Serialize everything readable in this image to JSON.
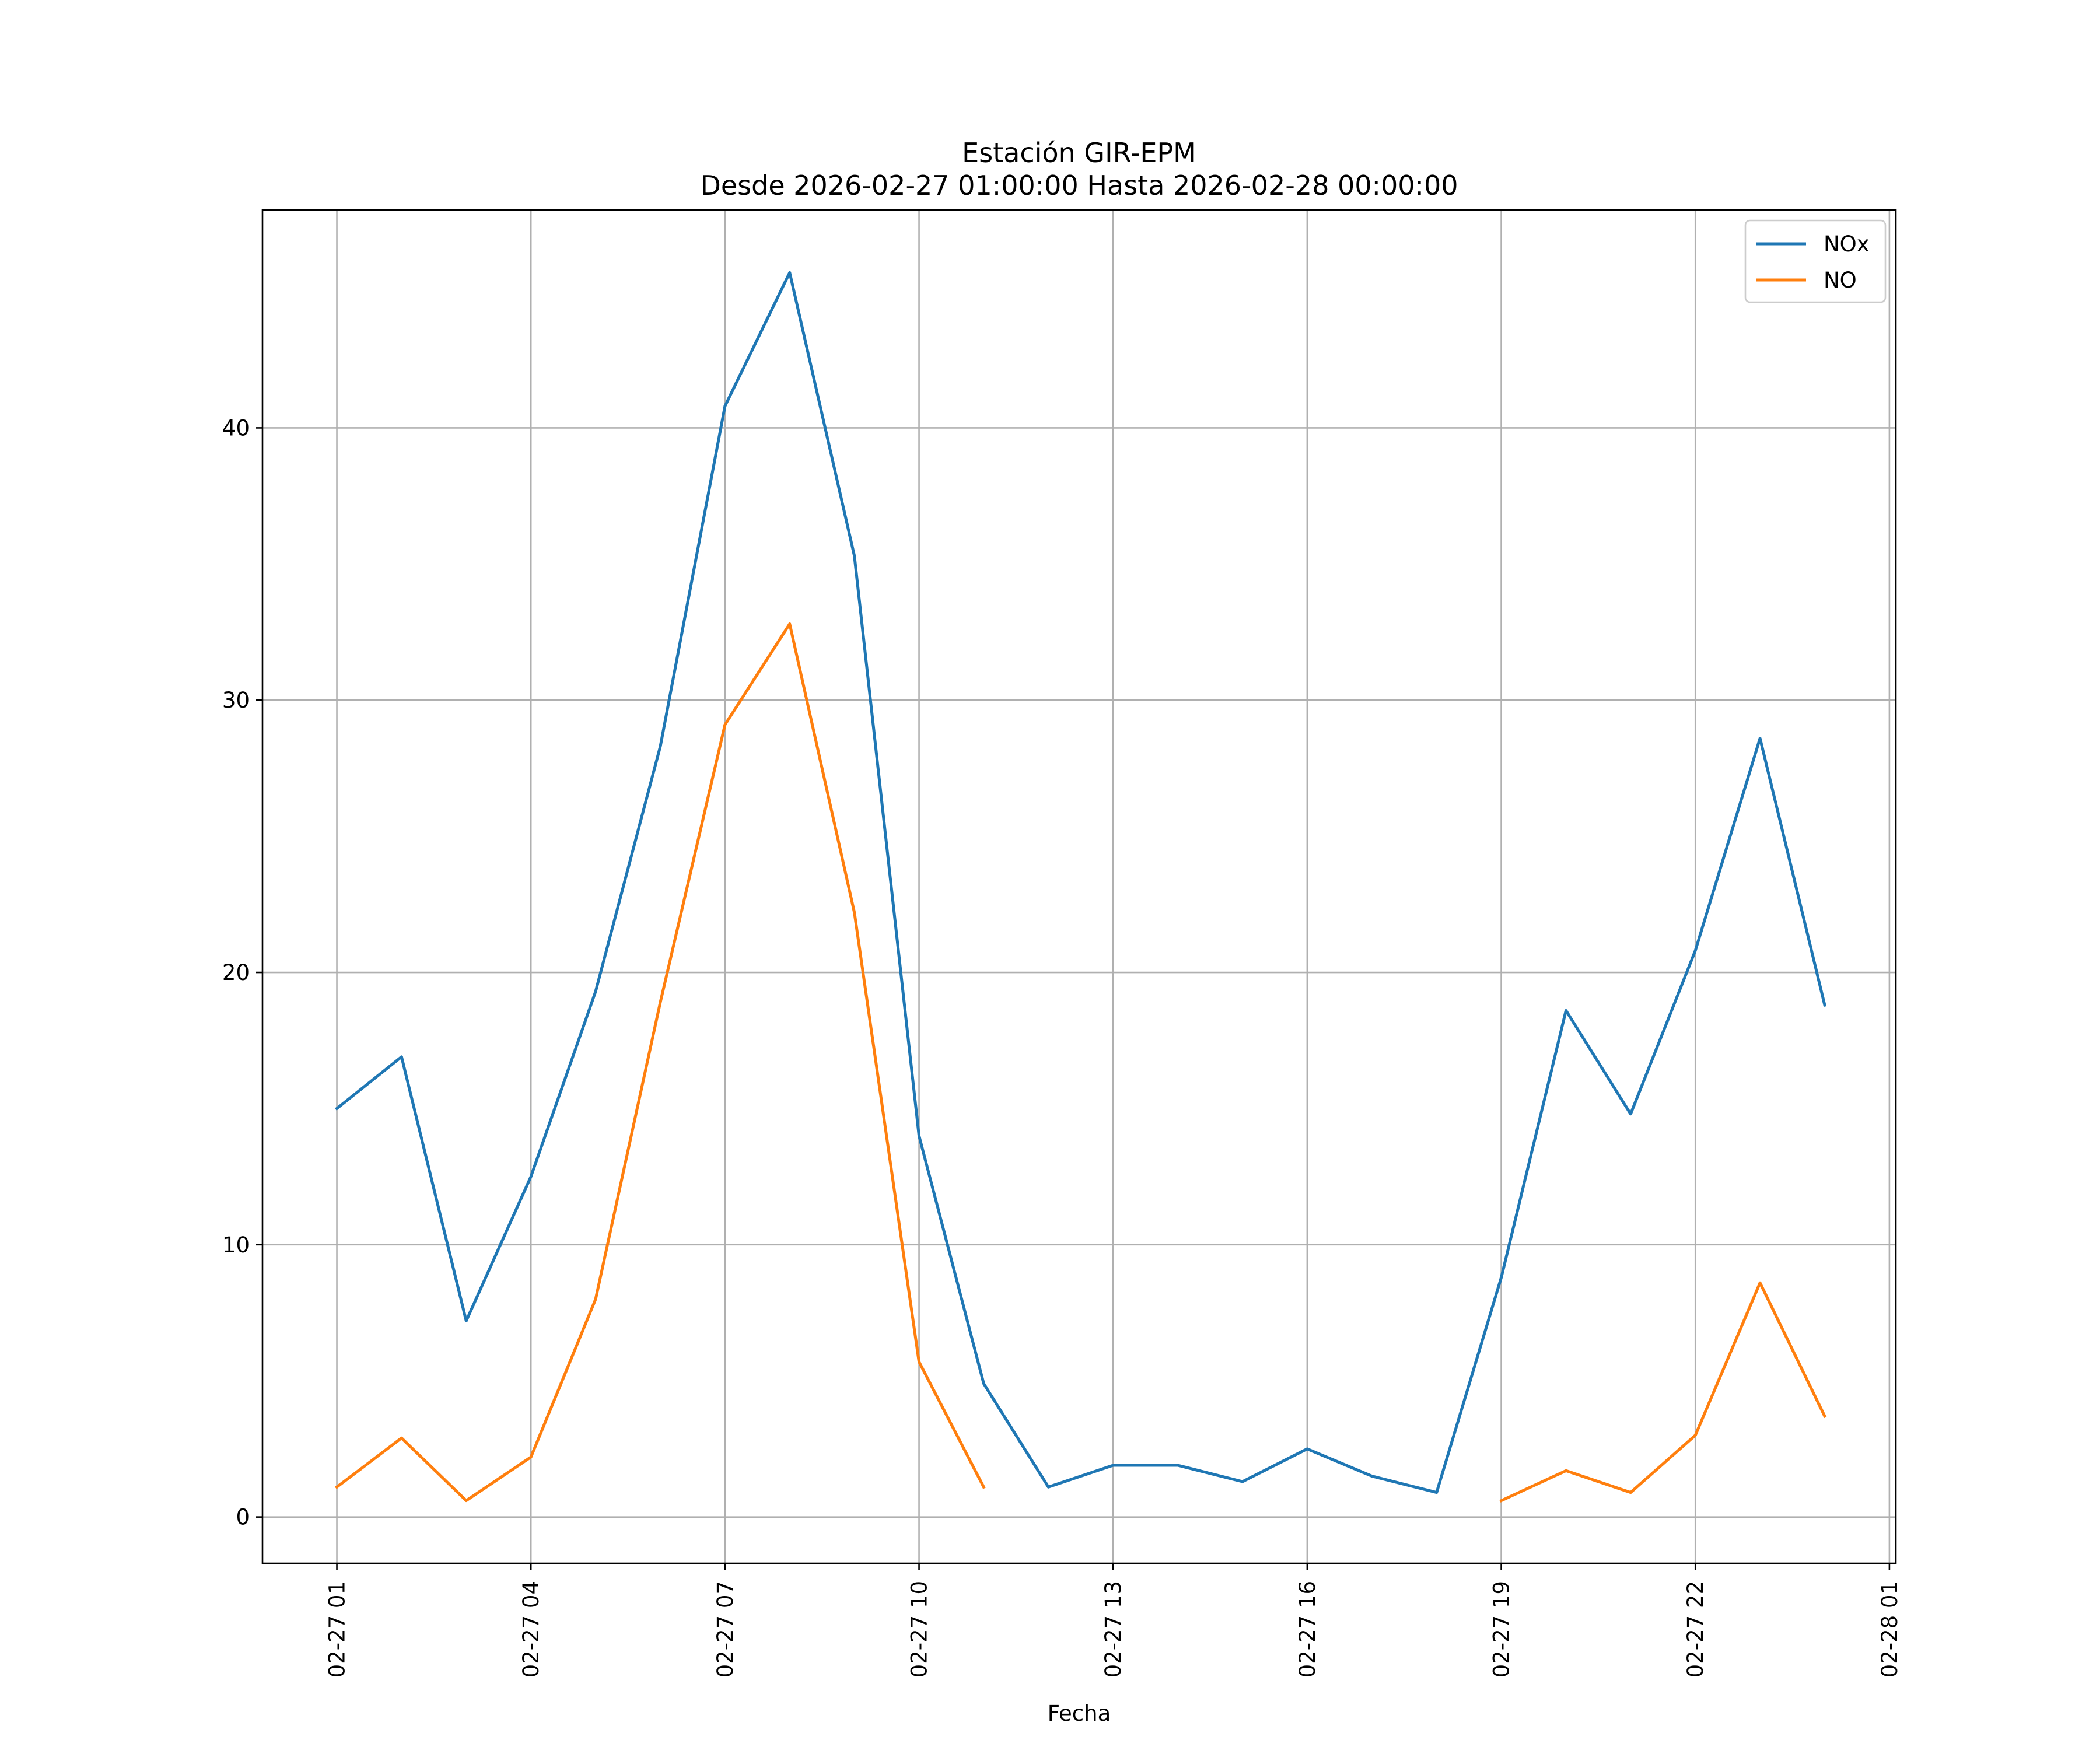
{
  "chart_data": {
    "type": "line",
    "title_line1": "Estación GIR-EPM",
    "title_line2": "Desde 2026-02-27 01:00:00 Hasta 2026-02-28 00:00:00",
    "xlabel": "Fecha",
    "ylabel": "",
    "x": [
      "02-27 01",
      "02-27 02",
      "02-27 03",
      "02-27 04",
      "02-27 05",
      "02-27 06",
      "02-27 07",
      "02-27 08",
      "02-27 09",
      "02-27 10",
      "02-27 11",
      "02-27 12",
      "02-27 13",
      "02-27 14",
      "02-27 15",
      "02-27 16",
      "02-27 17",
      "02-27 18",
      "02-27 19",
      "02-27 20",
      "02-27 21",
      "02-27 22",
      "02-27 23",
      "02-28 00"
    ],
    "x_hours": [
      1,
      2,
      3,
      4,
      5,
      6,
      7,
      8,
      9,
      10,
      11,
      12,
      13,
      14,
      15,
      16,
      17,
      18,
      19,
      20,
      21,
      22,
      23,
      24
    ],
    "xlim": [
      -0.15,
      25.1
    ],
    "ylim": [
      -1.7,
      48
    ],
    "xticks": [
      {
        "hour": 1,
        "label": "02-27 01"
      },
      {
        "hour": 4,
        "label": "02-27 04"
      },
      {
        "hour": 7,
        "label": "02-27 07"
      },
      {
        "hour": 10,
        "label": "02-27 10"
      },
      {
        "hour": 13,
        "label": "02-27 13"
      },
      {
        "hour": 16,
        "label": "02-27 16"
      },
      {
        "hour": 19,
        "label": "02-27 19"
      },
      {
        "hour": 22,
        "label": "02-27 22"
      },
      {
        "hour": 25,
        "label": "02-28 01"
      }
    ],
    "yticks": [
      0,
      10,
      20,
      30,
      40
    ],
    "grid": true,
    "legend_position": "top-right",
    "series": [
      {
        "name": "NOx",
        "color": "#1f77b4",
        "values": [
          15.0,
          16.9,
          7.2,
          12.5,
          19.3,
          28.3,
          40.8,
          45.7,
          35.3,
          14.0,
          4.9,
          1.1,
          1.9,
          1.9,
          1.3,
          2.5,
          1.5,
          0.9,
          8.8,
          18.6,
          14.8,
          20.8,
          28.6,
          18.8
        ]
      },
      {
        "name": "NO",
        "color": "#ff7f0e",
        "values": [
          1.1,
          2.9,
          0.6,
          2.2,
          8.0,
          18.9,
          29.1,
          32.8,
          22.2,
          5.7,
          1.1,
          null,
          null,
          null,
          null,
          null,
          null,
          null,
          0.6,
          1.7,
          0.9,
          3.0,
          8.6,
          3.7
        ]
      }
    ]
  }
}
